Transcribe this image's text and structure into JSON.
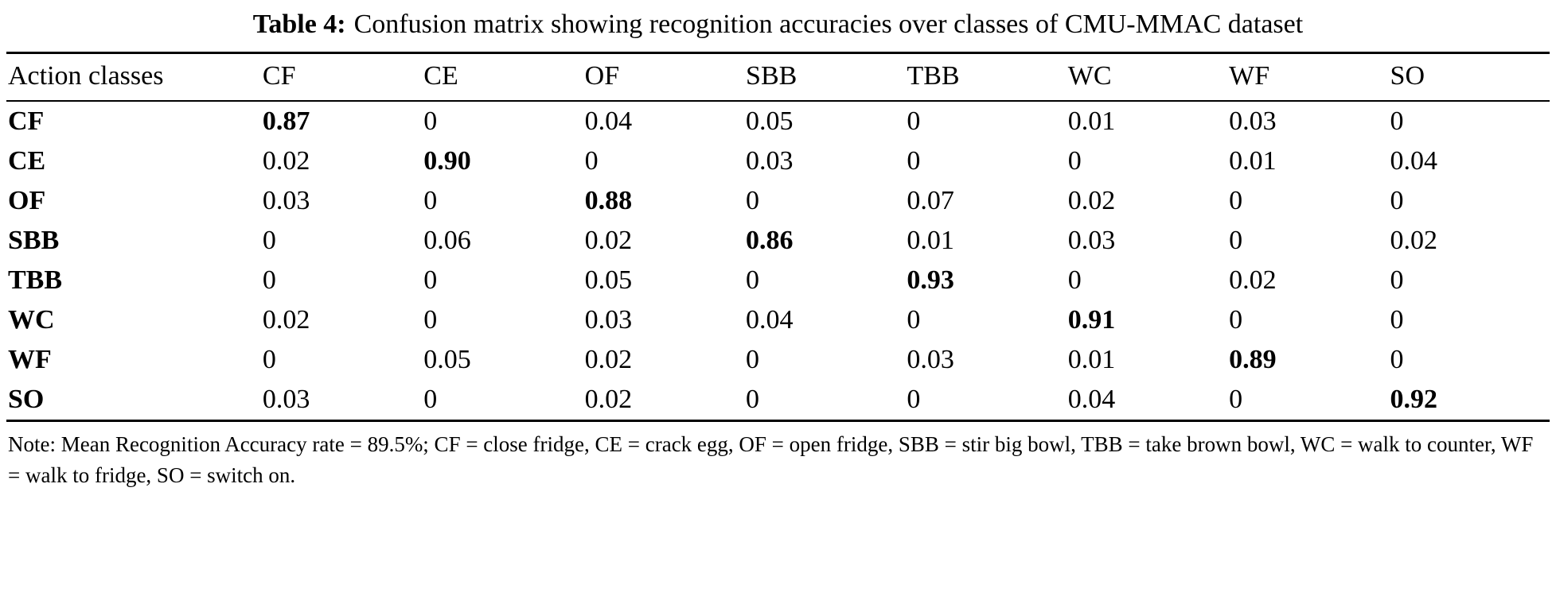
{
  "caption": {
    "label": "Table 4:",
    "text": "Confusion matrix showing recognition accuracies over classes of CMU-MMAC dataset"
  },
  "table": {
    "header": [
      "Action classes",
      "CF",
      "CE",
      "OF",
      "SBB",
      "TBB",
      "WC",
      "WF",
      "SO"
    ],
    "rows": [
      {
        "label": "CF",
        "values": [
          "0.87",
          "0",
          "0.04",
          "0.05",
          "0",
          "0.01",
          "0.03",
          "0"
        ]
      },
      {
        "label": "CE",
        "values": [
          "0.02",
          "0.90",
          "0",
          "0.03",
          "0",
          "0",
          "0.01",
          "0.04"
        ]
      },
      {
        "label": "OF",
        "values": [
          "0.03",
          "0",
          "0.88",
          "0",
          "0.07",
          "0.02",
          "0",
          "0"
        ]
      },
      {
        "label": "SBB",
        "values": [
          "0",
          "0.06",
          "0.02",
          "0.86",
          "0.01",
          "0.03",
          "0",
          "0.02"
        ]
      },
      {
        "label": "TBB",
        "values": [
          "0",
          "0",
          "0.05",
          "0",
          "0.93",
          "0",
          "0.02",
          "0"
        ]
      },
      {
        "label": "WC",
        "values": [
          "0.02",
          "0",
          "0.03",
          "0.04",
          "0",
          "0.91",
          "0",
          "0"
        ]
      },
      {
        "label": "WF",
        "values": [
          "0",
          "0.05",
          "0.02",
          "0",
          "0.03",
          "0.01",
          "0.89",
          "0"
        ]
      },
      {
        "label": "SO",
        "values": [
          "0.03",
          "0",
          "0.02",
          "0",
          "0",
          "0.04",
          "0",
          "0.92"
        ]
      }
    ],
    "diagonal_bold": true
  },
  "note": {
    "text": "Note: Mean Recognition Accuracy rate = 89.5%; CF = close fridge, CE = crack egg, OF = open fridge, SBB = stir big bowl, TBB = take brown bowl, WC = walk to counter, WF = walk to fridge, SO = switch on."
  },
  "colors": {
    "background": "#ffffff",
    "text": "#000000",
    "rule": "#000000"
  }
}
